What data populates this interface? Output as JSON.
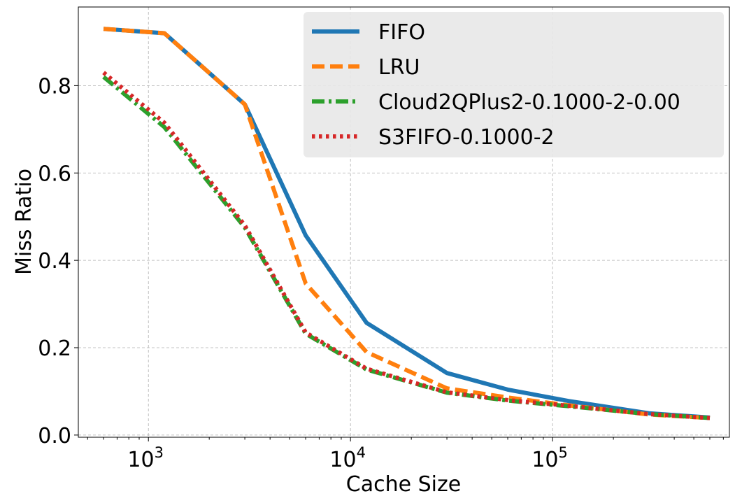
{
  "chart_data": {
    "type": "line",
    "title": "",
    "xlabel": "Cache Size",
    "ylabel": "Miss Ratio",
    "xscale": "log",
    "xlim": [
      450,
      750000
    ],
    "ylim": [
      -0.005,
      0.98
    ],
    "grid": true,
    "legend_position": "top-right",
    "x_ticks": [
      {
        "value": 1000,
        "base": "10",
        "exp": "3"
      },
      {
        "value": 10000,
        "base": "10",
        "exp": "4"
      },
      {
        "value": 100000,
        "base": "10",
        "exp": "5"
      }
    ],
    "y_ticks": [
      {
        "value": 0.0,
        "label": "0.0"
      },
      {
        "value": 0.2,
        "label": "0.2"
      },
      {
        "value": 0.4,
        "label": "0.4"
      },
      {
        "value": 0.6,
        "label": "0.6"
      },
      {
        "value": 0.8,
        "label": "0.8"
      }
    ],
    "x": [
      600,
      1200,
      3000,
      6000,
      12000,
      30000,
      60000,
      120000,
      300000,
      600000
    ],
    "series": [
      {
        "name": "FIFO",
        "color": "#1f77b4",
        "dash": "solid",
        "values": [
          0.93,
          0.92,
          0.757,
          0.457,
          0.257,
          0.142,
          0.104,
          0.078,
          0.05,
          0.04
        ]
      },
      {
        "name": "LRU",
        "color": "#ff7f0e",
        "dash": "dashed",
        "values": [
          0.93,
          0.92,
          0.757,
          0.347,
          0.19,
          0.107,
          0.086,
          0.068,
          0.047,
          0.039
        ]
      },
      {
        "name": "Cloud2QPlus2-0.1000-2-0.00",
        "color": "#2ca02c",
        "dash": "dashdot",
        "values": [
          0.82,
          0.705,
          0.475,
          0.232,
          0.15,
          0.097,
          0.079,
          0.066,
          0.048,
          0.039
        ]
      },
      {
        "name": "S3FIFO-0.1000-2",
        "color": "#d62728",
        "dash": "dotted",
        "values": [
          0.83,
          0.715,
          0.48,
          0.235,
          0.152,
          0.098,
          0.08,
          0.067,
          0.048,
          0.039
        ]
      }
    ]
  }
}
